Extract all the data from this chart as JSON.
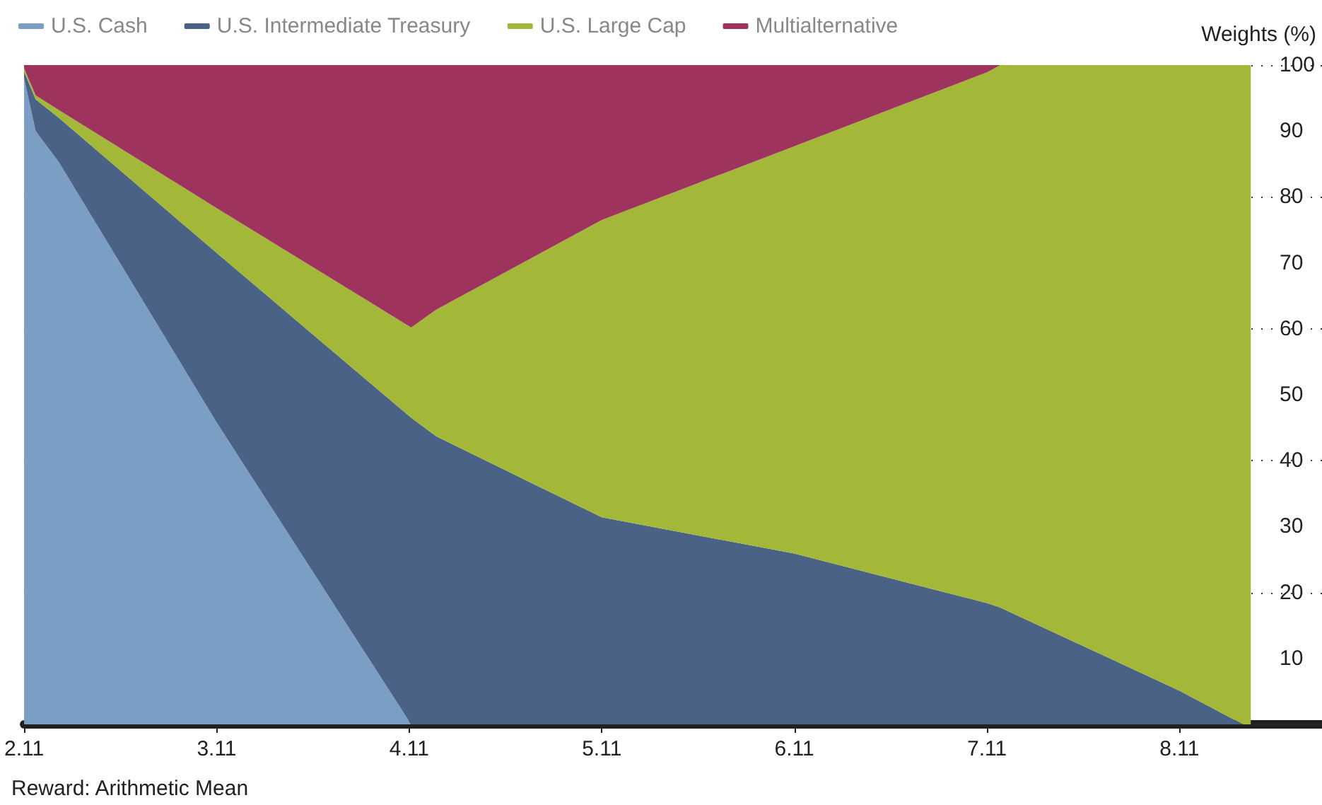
{
  "chart_data": {
    "type": "area",
    "stacked": true,
    "ylabel": "Weights (%)",
    "annotations": [
      "Reward: Arithmetic Mean"
    ],
    "x": [
      2.11,
      2.17,
      2.29,
      3.11,
      4.12,
      4.25,
      5.11,
      6.11,
      7.11,
      7.18,
      8.11,
      8.44,
      8.48
    ],
    "series": [
      {
        "name": "U.S. Cash",
        "color": "#7a9ec4",
        "values": [
          98,
          90,
          85.3,
          45.8,
          0,
          0,
          0,
          0,
          0,
          0,
          0,
          0,
          0
        ]
      },
      {
        "name": "U.S. Intermediate Treasury",
        "color": "#4a6285",
        "values": [
          1,
          4.8,
          6.7,
          25.7,
          46.5,
          43.7,
          31.4,
          25.9,
          18.4,
          17.7,
          5.1,
          0,
          0
        ]
      },
      {
        "name": "U.S. Large Cap",
        "color": "#a3b838",
        "values": [
          0.5,
          0.6,
          1.2,
          6.8,
          13.7,
          19.2,
          45.1,
          61.8,
          80.5,
          82.3,
          94.9,
          100,
          100
        ]
      },
      {
        "name": "Multialternative",
        "color": "#9e335e",
        "values": [
          0.5,
          4.6,
          6.8,
          21.7,
          39.8,
          37.1,
          23.5,
          12.3,
          1.1,
          0,
          null,
          null,
          null
        ]
      }
    ],
    "xlim": [
      2.11,
      8.85
    ],
    "xticks": [
      2.11,
      3.11,
      4.11,
      5.11,
      6.11,
      7.11,
      8.11
    ],
    "ylim": [
      0,
      100
    ],
    "yticks": [
      10,
      20,
      30,
      40,
      50,
      60,
      70,
      80,
      90,
      100
    ],
    "grid": "y",
    "legend": "top left"
  }
}
